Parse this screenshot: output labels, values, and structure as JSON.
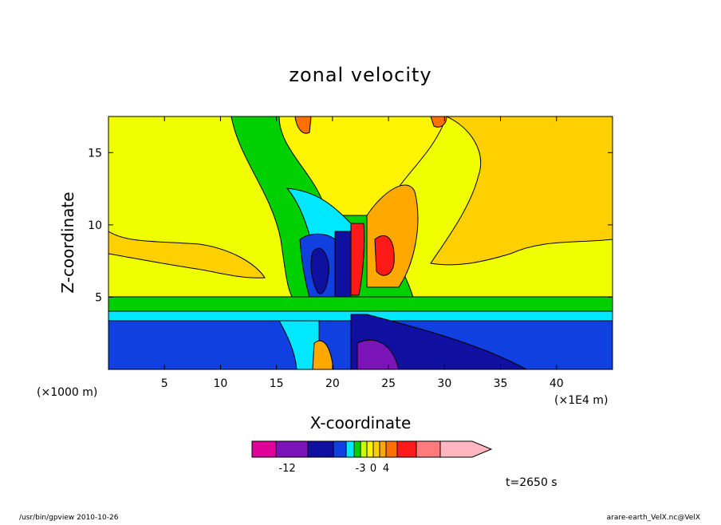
{
  "chart_data": {
    "type": "heatmap",
    "title": "zonal velocity",
    "xlabel": "X-coordinate",
    "ylabel": "Z-coordinate",
    "x_unit_note": "(×1E4 m)",
    "y_unit_note": "(×1000 m)",
    "xlim": [
      0,
      45
    ],
    "ylim": [
      0,
      17.5
    ],
    "x_ticks": [
      5,
      10,
      15,
      20,
      25,
      30,
      35,
      40
    ],
    "y_ticks": [
      5,
      10,
      15
    ],
    "grid": false,
    "colorbar": {
      "orientation": "horizontal",
      "placement": "bottom",
      "colors": [
        "#e0009a",
        "#7a14b8",
        "#1010a0",
        "#1040e0",
        "#00e8ff",
        "#00d000",
        "#c8ff00",
        "#fff500",
        "#ffd000",
        "#ffa800",
        "#ff7000",
        "#ff1a1a",
        "#ff7a7a",
        "#ffb6c1"
      ],
      "tick_labels": [
        "-12",
        "-3",
        "0",
        "4"
      ],
      "extend": "max"
    },
    "time_label": "t=2650 s"
  },
  "footer": {
    "left": "/usr/bin/gpview   2010-10-26",
    "right": "arare-earth_VelX.nc@VelX"
  }
}
